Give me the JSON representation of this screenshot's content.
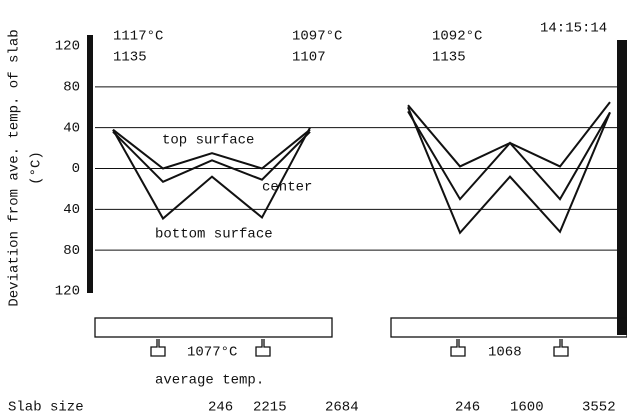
{
  "chart_data": {
    "type": "line",
    "y_label": "Deviation from ave. temp. of slab",
    "y_unit": "(°C)",
    "time": "14:15:14",
    "x_label": "Slab size",
    "ylim": [
      -120,
      120
    ],
    "yticks": [
      {
        "value": 120,
        "label": "120"
      },
      {
        "value": 80,
        "label": "80"
      },
      {
        "value": 40,
        "label": "40"
      },
      0,
      {
        "value": -40,
        "label": "40"
      },
      {
        "value": -80,
        "label": "80"
      },
      {
        "value": -120,
        "label": "120"
      }
    ],
    "grid": true,
    "panels": [
      {
        "head_temps": [
          {
            "temp": "1117°C",
            "value": 1135
          },
          {
            "temp": "1097°C",
            "value": 1107
          }
        ],
        "series": [
          {
            "name": "top surface",
            "color": "#111111",
            "values": [
              38,
              0,
              15,
              0,
              38
            ]
          },
          {
            "name": "center",
            "color": "#111111",
            "values": [
              36,
              -13,
              8,
              -11,
              36
            ]
          },
          {
            "name": "bottom surface",
            "color": "#111111",
            "values": [
              38,
              -49,
              -8,
              -48,
              40
            ]
          }
        ],
        "avg_temp": "1077°C",
        "avg_label": "average temp.",
        "slab_sizes": [
          246,
          2215,
          2684
        ]
      },
      {
        "head_temps": [
          {
            "temp": "1092°C",
            "value": 1135
          }
        ],
        "series": [
          {
            "color": "#111111",
            "values": [
              62,
              2,
              25,
              2,
              65
            ]
          },
          {
            "color": "#111111",
            "values": [
              56,
              -30,
              25,
              -30,
              55
            ]
          },
          {
            "color": "#111111",
            "values": [
              60,
              -63,
              -8,
              -62,
              55
            ]
          }
        ],
        "avg_temp": "1068",
        "slab_sizes": [
          246,
          1600,
          3552
        ]
      }
    ]
  }
}
